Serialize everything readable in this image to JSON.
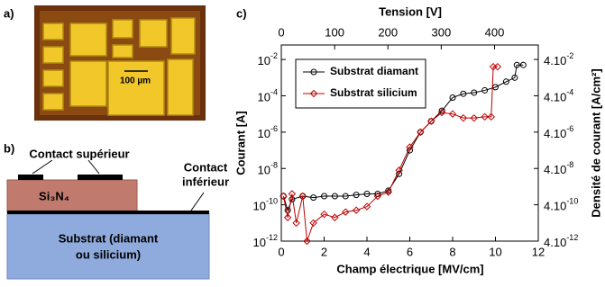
{
  "panel_labels": [
    "a)",
    "b)",
    "c)"
  ],
  "photo": {
    "scale_label": "100 µm"
  },
  "schematic": {
    "top_contact": "Contact supérieur",
    "bottom_contact": [
      "Contact",
      "inférieur"
    ],
    "layer": "Si₃N₄",
    "substrate": [
      "Substrat (diamant",
      "ou silicium)"
    ]
  },
  "chart_data": {
    "type": "line",
    "x_label": "Champ électrique [MV/cm]",
    "x2_label": "Tension [V]",
    "y_label": "Courant [A]",
    "y2_label": "Densité de courant [A/cm²]",
    "xlim": [
      0,
      12
    ],
    "xticks": [
      0,
      2,
      4,
      6,
      8,
      10,
      12
    ],
    "x2lim": [
      0,
      482
    ],
    "x2ticks": [
      0,
      100,
      200,
      300,
      400
    ],
    "ylim": [
      1e-12,
      0.063
    ],
    "log_y": true,
    "yticks": [
      {
        "value": 1e-12,
        "label": "10",
        "sup": "-12"
      },
      {
        "value": 1e-10,
        "label": "10",
        "sup": "-10"
      },
      {
        "value": 1e-08,
        "label": "10",
        "sup": "-8"
      },
      {
        "value": 1e-06,
        "label": "10",
        "sup": "-6"
      },
      {
        "value": 0.0001,
        "label": "10",
        "sup": "-4"
      },
      {
        "value": 0.01,
        "label": "10",
        "sup": "-2"
      }
    ],
    "y2lim": [
      4e-12,
      0.25
    ],
    "y2ticks": [
      {
        "value": 4e-12,
        "label": "4.10",
        "sup": "-12"
      },
      {
        "value": 4e-10,
        "label": "4.10",
        "sup": "-10"
      },
      {
        "value": 4e-08,
        "label": "4.10",
        "sup": "-8"
      },
      {
        "value": 4e-06,
        "label": "4.10",
        "sup": "-6"
      },
      {
        "value": 0.0004,
        "label": "4.10",
        "sup": "-4"
      },
      {
        "value": 0.04,
        "label": "4.10",
        "sup": "-2"
      }
    ],
    "series": [
      {
        "name": "Substrat diamant",
        "color": "#000000",
        "marker": "circle",
        "x": [
          0.1,
          0.3,
          0.5,
          1,
          1.5,
          2,
          2.5,
          3,
          3.5,
          4,
          4.5,
          5,
          5.5,
          6,
          6.5,
          7,
          7.5,
          8,
          8.5,
          9,
          9.5,
          10,
          10.5,
          10.9,
          11,
          11.3
        ],
        "values": [
          3e-10,
          5e-11,
          2e-10,
          3e-10,
          2.5e-10,
          3e-10,
          3e-10,
          3e-10,
          3.5e-10,
          4e-10,
          4e-10,
          6e-10,
          5e-09,
          1e-07,
          1e-06,
          4e-06,
          1.5e-05,
          8e-05,
          0.00013,
          0.00015,
          0.0002,
          0.0003,
          0.0006,
          0.001,
          0.005,
          0.005
        ]
      },
      {
        "name": "Substrat silicium",
        "color": "#c00000",
        "marker": "diamond",
        "x": [
          0.1,
          0.3,
          0.5,
          0.7,
          1,
          1.2,
          1.5,
          2,
          2.5,
          3,
          3.5,
          4,
          4.5,
          5,
          5.5,
          6,
          6.5,
          7,
          7.5,
          8,
          8.5,
          9,
          9.5,
          9.8,
          9.9,
          10.1
        ],
        "values": [
          3e-10,
          2e-11,
          4e-10,
          1e-11,
          3e-10,
          1e-12,
          1e-11,
          3e-11,
          2e-11,
          4e-11,
          5e-11,
          8e-11,
          3e-10,
          5e-10,
          8e-09,
          1.5e-07,
          1e-06,
          4e-06,
          1.2e-05,
          1e-05,
          6e-06,
          6e-06,
          7e-06,
          7e-06,
          0.004,
          0.004
        ]
      }
    ]
  }
}
